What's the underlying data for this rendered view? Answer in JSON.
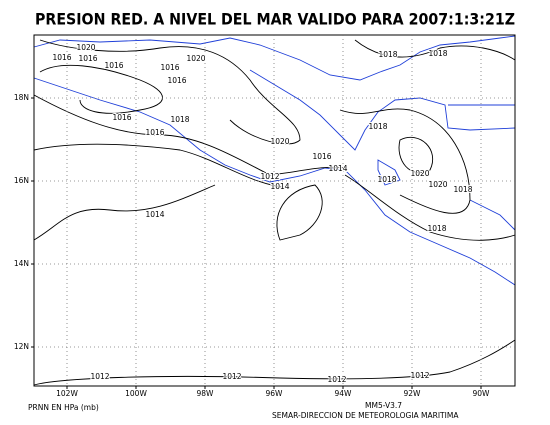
{
  "title": "PRESION RED. A NIVEL DEL MAR VALIDO PARA 2007:1:3:21Z",
  "lon_labels": [
    "102W",
    "100W",
    "98W",
    "96W",
    "94W",
    "92W",
    "90W"
  ],
  "lat_labels": [
    "18N",
    "16N",
    "14N",
    "12N"
  ],
  "contour_labels": [
    "1020",
    "1016",
    "1016",
    "1016",
    "1020",
    "1016",
    "1016",
    "1016",
    "1018",
    "1016",
    "1020",
    "1016",
    "1012",
    "1014",
    "1014",
    "1018",
    "1018",
    "1018",
    "1020",
    "1018",
    "1020",
    "1018",
    "1018",
    "1014",
    "1012",
    "1012",
    "1012",
    "1012"
  ],
  "footer_left": "PRNN EN HPa (mb)",
  "model": "MM5-V3.7",
  "agency": "SEMAR-DIRECCION DE METEOROLOGIA MARITIMA"
}
